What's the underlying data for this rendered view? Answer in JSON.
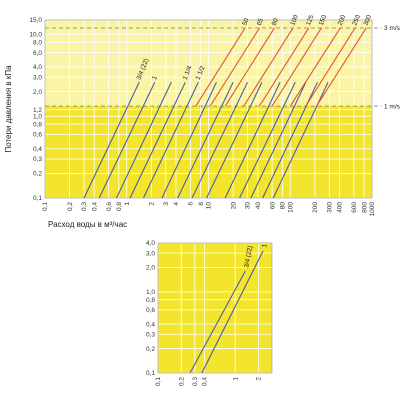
{
  "colors": {
    "plot_yellow": "#f2e52c",
    "plot_yellow_light": "#faf4a6",
    "grid": "#ffffff",
    "line_blue": "#4b5ea8",
    "line_red": "#e2572b",
    "dashed": "#8a8a8a"
  },
  "chart_data": [
    {
      "type": "line",
      "log_x": true,
      "log_y": true,
      "xlim": [
        0.1,
        1000
      ],
      "ylim": [
        0.1,
        15
      ],
      "ylabel": "Потери давления в кПа",
      "xlabel": "Расход воды в м³/час",
      "x_ticks": [
        "0,1",
        "0,2",
        "0,3",
        "0,4",
        "0,6",
        "0,8",
        "1",
        "2",
        "3",
        "4",
        "6",
        "8",
        "10",
        "20",
        "30",
        "40",
        "60",
        "80",
        "100",
        "200",
        "300",
        "400",
        "600",
        "800",
        "1000"
      ],
      "y_ticks": [
        "0,1",
        "0,2",
        "0,3",
        "0,4",
        "0,6",
        "0,8",
        "1,0",
        "1,2",
        "2,0",
        "3,0",
        "4,0",
        "6,0",
        "8,0",
        "10,0",
        "15,0"
      ],
      "velocity_lines": [
        {
          "label": "3 m/s",
          "y": 12
        },
        {
          "label": "1 m/s",
          "y": 1.33
        }
      ],
      "series": [
        {
          "name": "3/4 (22)",
          "color": "blue",
          "x": [
            0.3,
            1.42
          ],
          "y": [
            0.1,
            2.6
          ]
        },
        {
          "name": "1",
          "color": "blue",
          "x": [
            0.46,
            2.2
          ],
          "y": [
            0.1,
            2.6
          ]
        },
        {
          "name": "",
          "color": "blue",
          "x": [
            0.75,
            3.5
          ],
          "y": [
            0.1,
            2.6
          ]
        },
        {
          "name": "1 1/4",
          "color": "blue",
          "x": [
            1.1,
            5.2
          ],
          "y": [
            0.1,
            2.6
          ]
        },
        {
          "name": "1 1/2",
          "color": "blue",
          "x": [
            1.6,
            7.5
          ],
          "y": [
            0.1,
            2.6
          ]
        },
        {
          "name": "",
          "color": "blue",
          "x": [
            2.7,
            12.5
          ],
          "y": [
            0.1,
            2.6
          ]
        },
        {
          "name": "",
          "color": "blue",
          "x": [
            4.2,
            20
          ],
          "y": [
            0.1,
            2.6
          ]
        },
        {
          "name": "",
          "color": "blue",
          "x": [
            6.3,
            30
          ],
          "y": [
            0.1,
            2.6
          ]
        },
        {
          "name": "",
          "color": "blue",
          "x": [
            9.5,
            45
          ],
          "y": [
            0.1,
            2.6
          ]
        },
        {
          "name": "",
          "color": "blue",
          "x": [
            16,
            75
          ],
          "y": [
            0.1,
            2.6
          ]
        },
        {
          "name": "",
          "color": "blue",
          "x": [
            24,
            115
          ],
          "y": [
            0.1,
            2.6
          ]
        },
        {
          "name": "",
          "color": "blue",
          "x": [
            33,
            155
          ],
          "y": [
            0.1,
            2.6
          ]
        },
        {
          "name": "",
          "color": "blue",
          "x": [
            46,
            215
          ],
          "y": [
            0.1,
            2.6
          ]
        },
        {
          "name": "",
          "color": "blue",
          "x": [
            62,
            290
          ],
          "y": [
            0.1,
            2.6
          ]
        },
        {
          "name": "50",
          "color": "red",
          "x": [
            7,
            28
          ],
          "y": [
            1.33,
            12
          ]
        },
        {
          "name": "65",
          "color": "red",
          "x": [
            10.5,
            42
          ],
          "y": [
            1.33,
            12
          ]
        },
        {
          "name": "80",
          "color": "red",
          "x": [
            16,
            64
          ],
          "y": [
            1.33,
            12
          ]
        },
        {
          "name": "100",
          "color": "red",
          "x": [
            27,
            108
          ],
          "y": [
            1.33,
            12
          ]
        },
        {
          "name": "125",
          "color": "red",
          "x": [
            42,
            168
          ],
          "y": [
            1.33,
            12
          ]
        },
        {
          "name": "150",
          "color": "red",
          "x": [
            60,
            240
          ],
          "y": [
            1.33,
            12
          ]
        },
        {
          "name": "200",
          "color": "red",
          "x": [
            100,
            410
          ],
          "y": [
            1.33,
            12
          ]
        },
        {
          "name": "250",
          "color": "red",
          "x": [
            155,
            620
          ],
          "y": [
            1.33,
            12
          ]
        },
        {
          "name": "300",
          "color": "red",
          "x": [
            210,
            850
          ],
          "y": [
            1.33,
            12
          ]
        }
      ]
    },
    {
      "type": "line",
      "log_x": true,
      "log_y": true,
      "xlim": [
        0.1,
        3
      ],
      "ylim": [
        0.1,
        4
      ],
      "x_ticks": [
        "0,1",
        "0,2",
        "0,3",
        "0,4",
        "1",
        "2"
      ],
      "y_ticks": [
        "0,1",
        "0,2",
        "0,3",
        "0,4",
        "0,6",
        "0,8",
        "1,0",
        "2,0",
        "3,0",
        "4,0"
      ],
      "series": [
        {
          "name": "3/4 (22)",
          "color": "blue",
          "x": [
            0.26,
            1.35
          ],
          "y": [
            0.1,
            1.8
          ]
        },
        {
          "name": "1",
          "color": "blue",
          "x": [
            0.37,
            2.3
          ],
          "y": [
            0.1,
            3.2
          ]
        }
      ]
    }
  ]
}
